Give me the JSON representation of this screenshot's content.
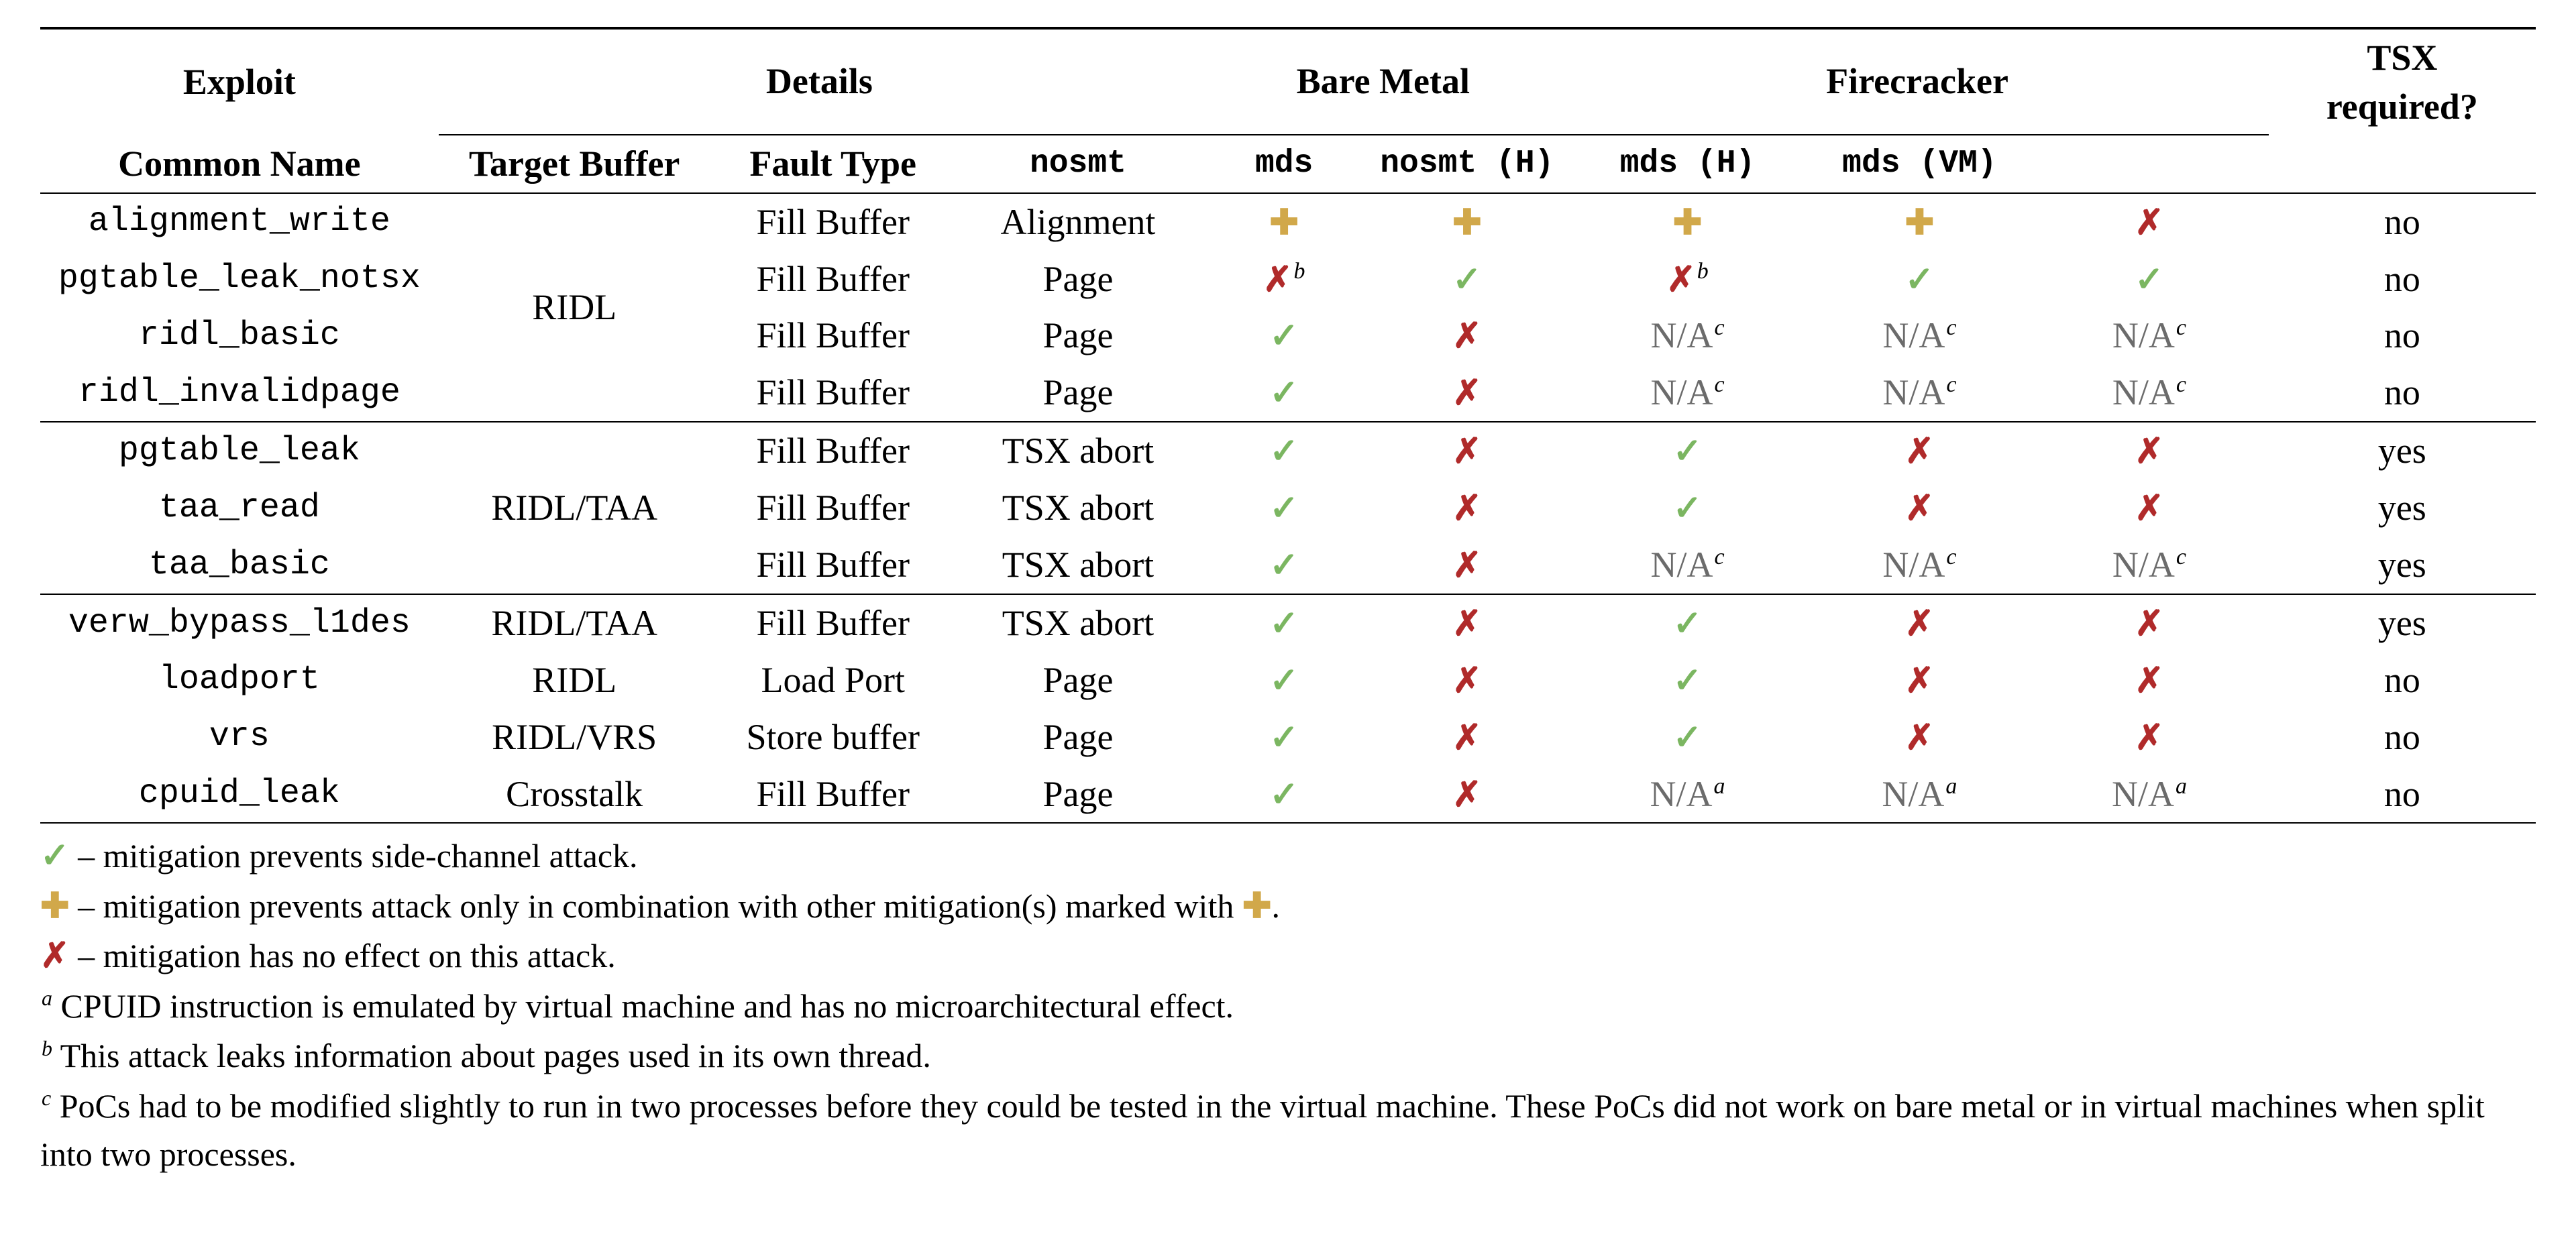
{
  "colors": {
    "check": "#7bb661",
    "cross": "#b02a2a",
    "plus": "#d1a84a",
    "na": "#6b6b6b",
    "text": "#000000",
    "bg": "#ffffff"
  },
  "glyphs": {
    "check": "✓",
    "cross": "✗",
    "plus": "✚"
  },
  "header": {
    "exploit": "Exploit",
    "details": "Details",
    "bare_metal": "Bare Metal",
    "firecracker": "Firecracker",
    "tsx_line1": "TSX",
    "tsx_line2": "required?",
    "sub": {
      "common_name": "Common Name",
      "target_buffer": "Target Buffer",
      "fault_type": "Fault Type",
      "bm_nosmt": "nosmt",
      "bm_mds": "mds",
      "fc_nosmt_h": "nosmt (H)",
      "fc_mds_h": "mds (H)",
      "fc_mds_vm": "mds (VM)"
    }
  },
  "groups": [
    {
      "common_name": "RIDL",
      "rows": [
        {
          "exploit": "alignment_write",
          "target": "Fill Buffer",
          "fault": "Alignment",
          "bm_nosmt": {
            "t": "plus"
          },
          "bm_mds": {
            "t": "plus"
          },
          "fc_nosmt_h": {
            "t": "plus"
          },
          "fc_mds_h": {
            "t": "plus"
          },
          "fc_mds_vm": {
            "t": "cross"
          },
          "tsx": "no"
        },
        {
          "exploit": "pgtable_leak_notsx",
          "target": "Fill Buffer",
          "fault": "Page",
          "bm_nosmt": {
            "t": "cross",
            "sup": "b"
          },
          "bm_mds": {
            "t": "check"
          },
          "fc_nosmt_h": {
            "t": "cross",
            "sup": "b"
          },
          "fc_mds_h": {
            "t": "check"
          },
          "fc_mds_vm": {
            "t": "check"
          },
          "tsx": "no"
        },
        {
          "exploit": "ridl_basic",
          "target": "Fill Buffer",
          "fault": "Page",
          "bm_nosmt": {
            "t": "check"
          },
          "bm_mds": {
            "t": "cross"
          },
          "fc_nosmt_h": {
            "t": "na",
            "sup": "c"
          },
          "fc_mds_h": {
            "t": "na",
            "sup": "c"
          },
          "fc_mds_vm": {
            "t": "na",
            "sup": "c"
          },
          "tsx": "no"
        },
        {
          "exploit": "ridl_invalidpage",
          "target": "Fill Buffer",
          "fault": "Page",
          "bm_nosmt": {
            "t": "check"
          },
          "bm_mds": {
            "t": "cross"
          },
          "fc_nosmt_h": {
            "t": "na",
            "sup": "c"
          },
          "fc_mds_h": {
            "t": "na",
            "sup": "c"
          },
          "fc_mds_vm": {
            "t": "na",
            "sup": "c"
          },
          "tsx": "no"
        }
      ]
    },
    {
      "common_name": "RIDL/TAA",
      "rows": [
        {
          "exploit": "pgtable_leak",
          "target": "Fill Buffer",
          "fault": "TSX abort",
          "bm_nosmt": {
            "t": "check"
          },
          "bm_mds": {
            "t": "cross"
          },
          "fc_nosmt_h": {
            "t": "check"
          },
          "fc_mds_h": {
            "t": "cross"
          },
          "fc_mds_vm": {
            "t": "cross"
          },
          "tsx": "yes"
        },
        {
          "exploit": "taa_read",
          "target": "Fill Buffer",
          "fault": "TSX abort",
          "bm_nosmt": {
            "t": "check"
          },
          "bm_mds": {
            "t": "cross"
          },
          "fc_nosmt_h": {
            "t": "check"
          },
          "fc_mds_h": {
            "t": "cross"
          },
          "fc_mds_vm": {
            "t": "cross"
          },
          "tsx": "yes"
        },
        {
          "exploit": "taa_basic",
          "target": "Fill Buffer",
          "fault": "TSX abort",
          "bm_nosmt": {
            "t": "check"
          },
          "bm_mds": {
            "t": "cross"
          },
          "fc_nosmt_h": {
            "t": "na",
            "sup": "c"
          },
          "fc_mds_h": {
            "t": "na",
            "sup": "c"
          },
          "fc_mds_vm": {
            "t": "na",
            "sup": "c"
          },
          "tsx": "yes"
        }
      ]
    },
    {
      "rows": [
        {
          "exploit": "verw_bypass_l1des",
          "common": "RIDL/TAA",
          "target": "Fill Buffer",
          "fault": "TSX abort",
          "bm_nosmt": {
            "t": "check"
          },
          "bm_mds": {
            "t": "cross"
          },
          "fc_nosmt_h": {
            "t": "check"
          },
          "fc_mds_h": {
            "t": "cross"
          },
          "fc_mds_vm": {
            "t": "cross"
          },
          "tsx": "yes"
        },
        {
          "exploit": "loadport",
          "common": "RIDL",
          "target": "Load Port",
          "fault": "Page",
          "bm_nosmt": {
            "t": "check"
          },
          "bm_mds": {
            "t": "cross"
          },
          "fc_nosmt_h": {
            "t": "check"
          },
          "fc_mds_h": {
            "t": "cross"
          },
          "fc_mds_vm": {
            "t": "cross"
          },
          "tsx": "no"
        },
        {
          "exploit": "vrs",
          "common": "RIDL/VRS",
          "target": "Store buffer",
          "fault": "Page",
          "bm_nosmt": {
            "t": "check"
          },
          "bm_mds": {
            "t": "cross"
          },
          "fc_nosmt_h": {
            "t": "check"
          },
          "fc_mds_h": {
            "t": "cross"
          },
          "fc_mds_vm": {
            "t": "cross"
          },
          "tsx": "no"
        },
        {
          "exploit": "cpuid_leak",
          "common": "Crosstalk",
          "target": "Fill Buffer",
          "fault": "Page",
          "bm_nosmt": {
            "t": "check"
          },
          "bm_mds": {
            "t": "cross"
          },
          "fc_nosmt_h": {
            "t": "na",
            "sup": "a"
          },
          "fc_mds_h": {
            "t": "na",
            "sup": "a"
          },
          "fc_mds_vm": {
            "t": "na",
            "sup": "a"
          },
          "tsx": "no"
        }
      ]
    }
  ],
  "legend": {
    "check": " – mitigation prevents side-channel attack.",
    "plus_pre": " – mitigation prevents attack only in combination with other mitigation(s) marked with ",
    "plus_post": ".",
    "cross": " – mitigation has no effect on this attack.",
    "a": " CPUID instruction is emulated by virtual machine and has no microarchitectural effect.",
    "b": " This attack leaks information about pages used in its own thread.",
    "c": " PoCs had to be modified slightly to run in two processes before they could be tested in the virtual machine. These PoCs did not work on bare metal or in virtual machines when split into two processes."
  },
  "na_text": "N/A"
}
